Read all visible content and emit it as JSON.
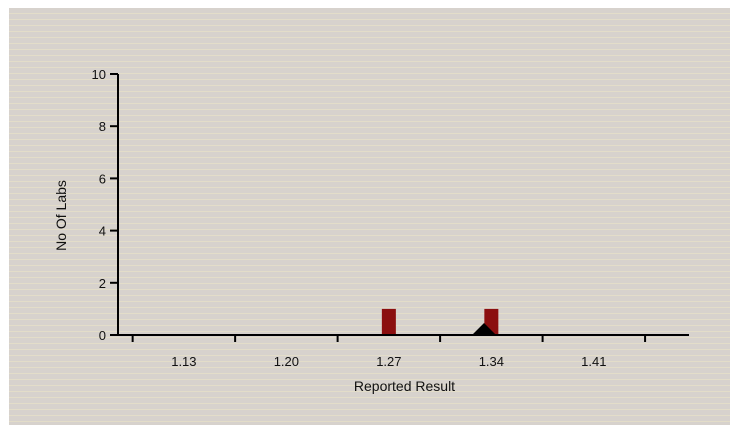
{
  "chart_data": {
    "type": "histogram",
    "title": "",
    "xlabel": "Reported Result",
    "ylabel": "No Of Labs",
    "x_tick_labels": [
      "1.13",
      "1.20",
      "1.27",
      "1.34",
      "1.41"
    ],
    "x_ticks": [
      1.13,
      1.2,
      1.27,
      1.34,
      1.41
    ],
    "xlim": [
      1.085,
      1.475
    ],
    "ylim": [
      0,
      10
    ],
    "y_ticks": [
      0,
      2,
      4,
      6,
      8,
      10
    ],
    "y_tick_labels": [
      "0",
      "2",
      "4",
      "6",
      "8",
      "10"
    ],
    "bars": [
      {
        "x": 1.27,
        "value": 1
      },
      {
        "x": 1.34,
        "value": 1
      }
    ],
    "assigned_value_marker": 1.335,
    "grid": false,
    "colors": {
      "bar": "#8b0f0f",
      "background": "#d9d4cf"
    }
  }
}
